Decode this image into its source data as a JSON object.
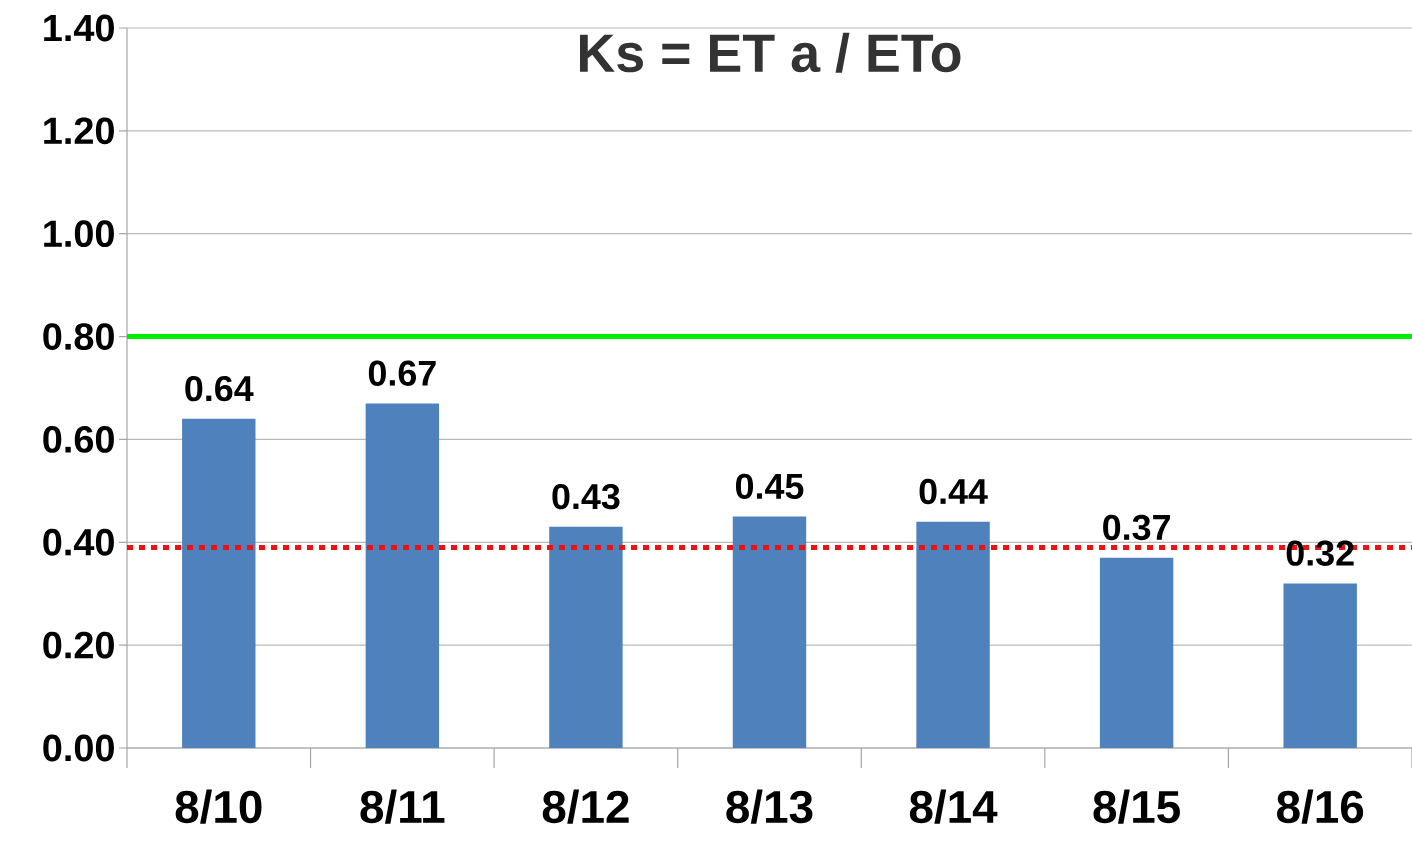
{
  "chart_data": {
    "type": "bar",
    "title": "Ks = ET a / ETo",
    "categories": [
      "8/10",
      "8/11",
      "8/12",
      "8/13",
      "8/14",
      "8/15",
      "8/16"
    ],
    "values": [
      0.64,
      0.67,
      0.43,
      0.45,
      0.44,
      0.37,
      0.32
    ],
    "color": "#4f81bd",
    "ylim": [
      0,
      1.4
    ],
    "yticks": [
      {
        "value": 0,
        "label": "0.00"
      },
      {
        "value": 0.2,
        "label": "0.20"
      },
      {
        "value": 0.4,
        "label": "0.40"
      },
      {
        "value": 0.6,
        "label": "0.60"
      },
      {
        "value": 0.8,
        "label": "0.80"
      },
      {
        "value": 1.0,
        "label": "1.00"
      },
      {
        "value": 1.2,
        "label": "1.20"
      },
      {
        "value": 1.4,
        "label": "1.40"
      }
    ],
    "grid": "y",
    "data_labels": true,
    "ref_lines": [
      {
        "axis": "y",
        "value": 0.8,
        "color": "#00ee00",
        "line_style": "solid"
      },
      {
        "axis": "y",
        "value": 0.39,
        "color": "#ee1111",
        "line_style": "dotted"
      }
    ]
  }
}
